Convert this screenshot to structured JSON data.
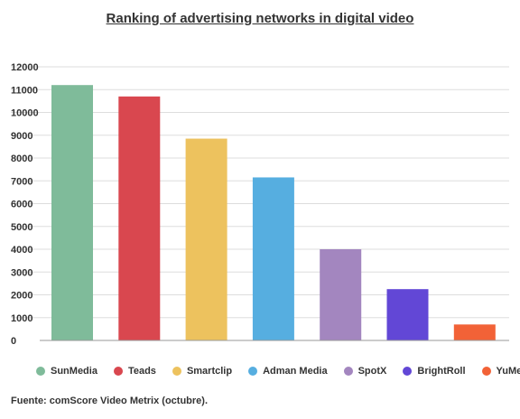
{
  "chart_data": {
    "type": "bar",
    "title": "Ranking of advertising networks in digital video",
    "categories": [
      "SunMedia",
      "Teads",
      "Smartclip",
      "Adman Media",
      "SpotX",
      "BrightRoll",
      "YuMe"
    ],
    "values": [
      11200,
      10700,
      8850,
      7150,
      4000,
      2250,
      700
    ],
    "colors": [
      "#7fbb9a",
      "#d9474f",
      "#edc25e",
      "#56aee0",
      "#a386bf",
      "#6247d6",
      "#f26237"
    ],
    "yticks": [
      "12000",
      "11000",
      "10000",
      "9000",
      "8000",
      "7000",
      "6000",
      "5000",
      "4000",
      "3000",
      "2000",
      "1000",
      "0"
    ],
    "ylim": [
      0,
      12000
    ],
    "grid": true,
    "legend_position": "bottom"
  },
  "source": "Fuente: comScore Video Metrix (octubre)."
}
